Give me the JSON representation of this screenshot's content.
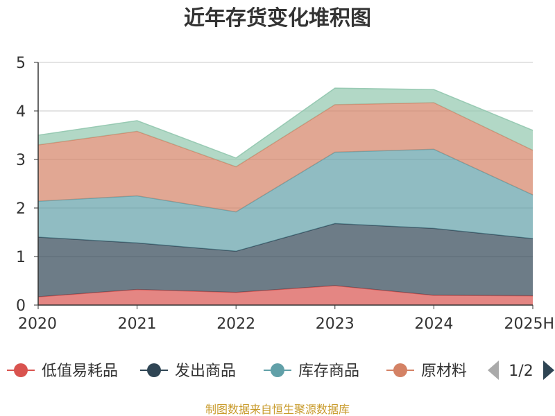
{
  "chart_data": {
    "type": "area",
    "stacked": true,
    "title": "近年存货变化堆积图",
    "categories": [
      "2020",
      "2021",
      "2022",
      "2023",
      "2024",
      "2025H"
    ],
    "ylim": [
      0,
      5
    ],
    "yticks": [
      "0",
      "1",
      "2",
      "3",
      "4",
      "5"
    ],
    "grid": true,
    "legend_position": "bottom",
    "series": [
      {
        "name": "低值易耗品",
        "color": "#d9534f",
        "values": [
          0.17,
          0.32,
          0.26,
          0.4,
          0.2,
          0.19
        ]
      },
      {
        "name": "发出商品",
        "color": "#2f4554",
        "values": [
          1.23,
          0.96,
          0.85,
          1.28,
          1.38,
          1.18
        ]
      },
      {
        "name": "库存商品",
        "color": "#61a0a8",
        "values": [
          0.74,
          0.97,
          0.81,
          1.47,
          1.63,
          0.9
        ]
      },
      {
        "name": "原材料",
        "color": "#d48265",
        "values": [
          1.16,
          1.33,
          0.93,
          0.98,
          0.96,
          0.92
        ]
      },
      {
        "name": "",
        "color": "#91c7ae",
        "values": [
          0.2,
          0.22,
          0.18,
          0.34,
          0.27,
          0.41
        ]
      }
    ]
  },
  "legend": {
    "items": [
      "低值易耗品",
      "发出商品",
      "库存商品",
      "原材料"
    ],
    "page_indicator": "1/2"
  },
  "footer": {
    "source_text": "制图数据来自恒生聚源数据库"
  }
}
